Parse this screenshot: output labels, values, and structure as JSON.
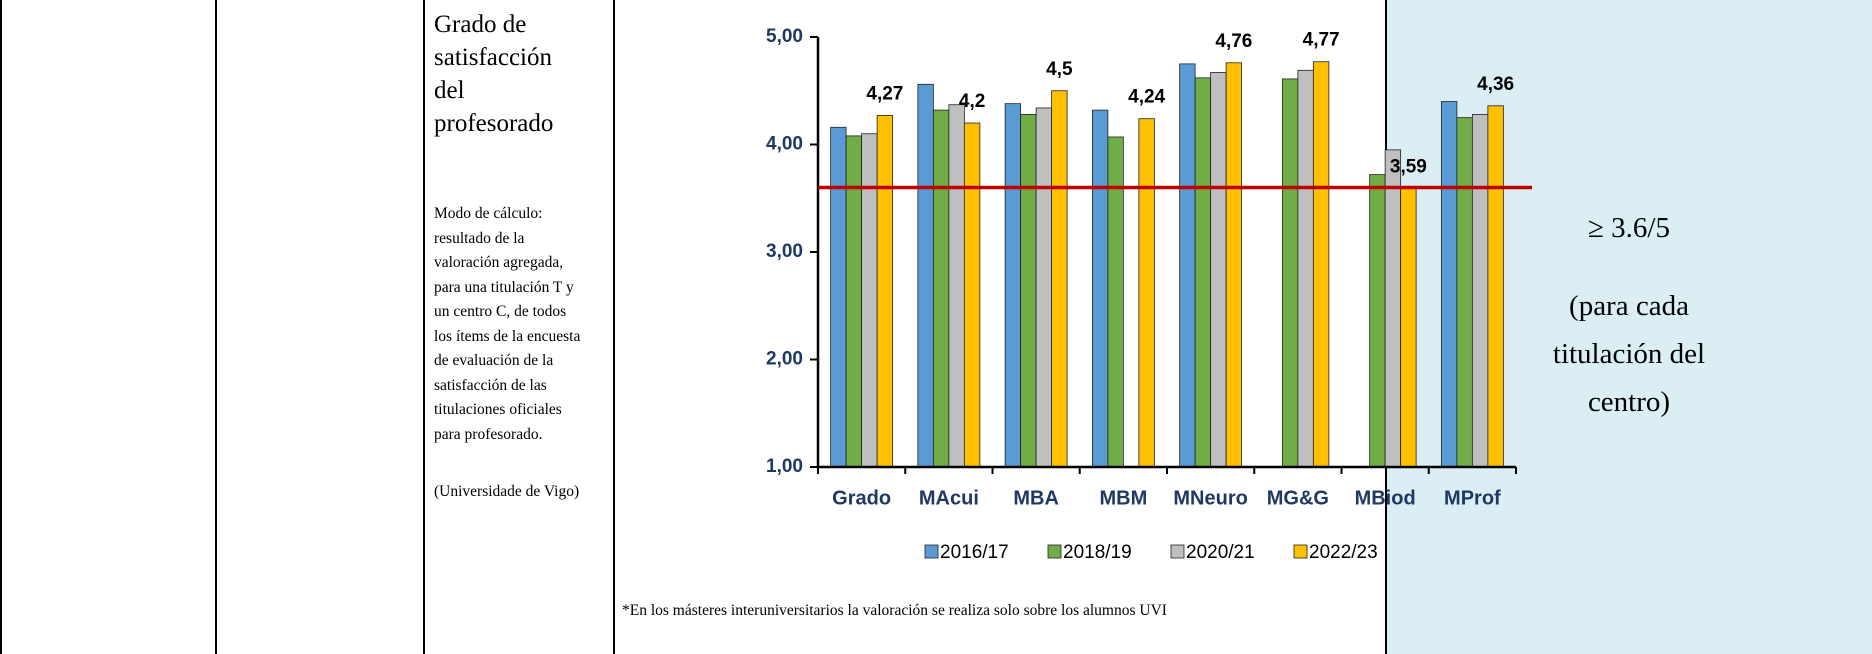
{
  "indicator": {
    "title": "Grado de satisfacción del profesorado",
    "method": "Modo de cálculo: resultado de la valoración agregada, para una titulación T y un centro C, de todos los ítems de la encuesta de evaluación de la satisfacción de las titulaciones oficiales para profesorado.",
    "source": "(Universidade de Vigo)"
  },
  "chart_data": {
    "type": "bar",
    "categories": [
      "Grado",
      "MAcui",
      "MBA",
      "MBM",
      "MNeuro",
      "MG&G",
      "MBiod",
      "MProf"
    ],
    "series": [
      {
        "name": "2016/17",
        "color": "#5b9bd5",
        "values": [
          4.16,
          4.56,
          4.38,
          4.32,
          4.75,
          null,
          null,
          4.4
        ]
      },
      {
        "name": "2018/19",
        "color": "#70ad47",
        "values": [
          4.08,
          4.32,
          4.28,
          4.07,
          4.62,
          4.61,
          3.72,
          4.25
        ]
      },
      {
        "name": "2020/21",
        "color": "#bfbfbf",
        "values": [
          4.1,
          4.37,
          4.34,
          null,
          4.67,
          4.69,
          3.95,
          4.28
        ]
      },
      {
        "name": "2022/23",
        "color": "#ffc000",
        "values": [
          4.27,
          4.2,
          4.5,
          4.24,
          4.76,
          4.77,
          3.59,
          4.36
        ],
        "value_labels": [
          "4,27",
          "4,2",
          "4,5",
          "4,24",
          "4,76",
          "4,77",
          "3,59",
          "4,36"
        ]
      }
    ],
    "ylim": [
      1,
      5
    ],
    "yticks": [
      {
        "value": 1,
        "label": "1,00"
      },
      {
        "value": 2,
        "label": "2,00"
      },
      {
        "value": 3,
        "label": "3,00"
      },
      {
        "value": 4,
        "label": "4,00"
      },
      {
        "value": 5,
        "label": "5,00"
      }
    ],
    "reference_line": {
      "value": 3.6,
      "color": "#c00000"
    },
    "legend": "bottom",
    "footnote": "*En los másteres interuniversitarios la valoración se realiza solo sobre los alumnos UVI"
  },
  "target": {
    "value": "≥ 3.6/5",
    "note": "(para cada titulación del centro)"
  }
}
